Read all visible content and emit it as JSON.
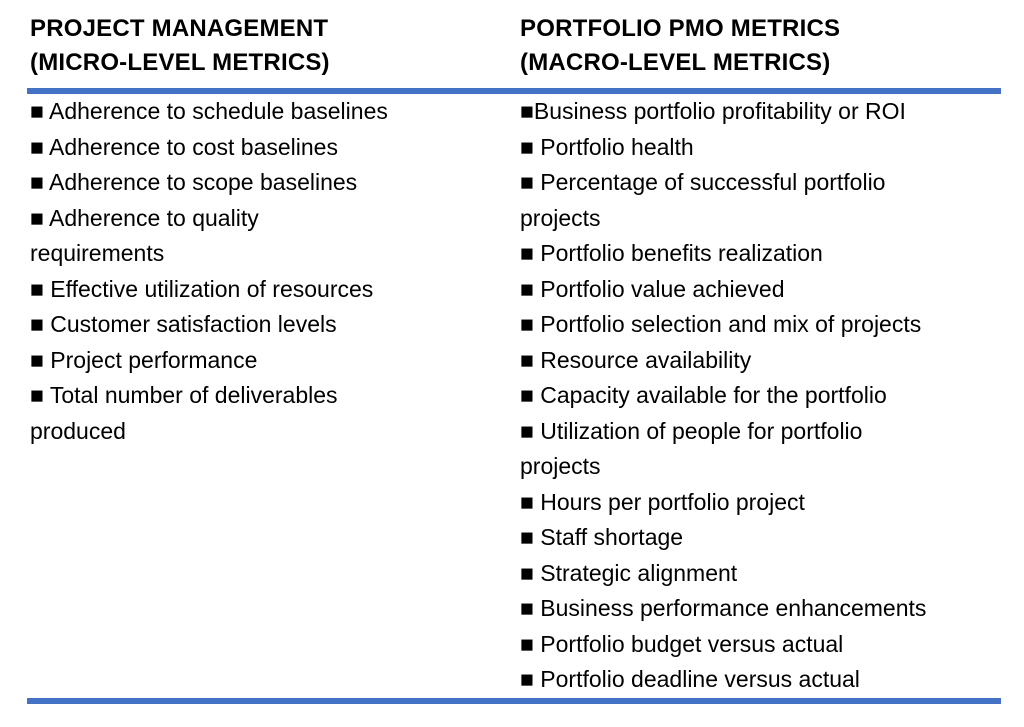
{
  "table": {
    "rule_color": "#4472C4",
    "columns": [
      {
        "header": "PROJECT MANAGEMENT\n(MICRO-LEVEL METRICS)",
        "items": [
          "■ Adherence to schedule baselines",
          "■ Adherence to cost baselines",
          "■ Adherence to scope baselines",
          "■ Adherence to quality\nrequirements",
          "■ Effective utilization of resources",
          "■ Customer satisfaction levels",
          "■ Project performance",
          "■ Total number of deliverables\nproduced"
        ]
      },
      {
        "header": "PORTFOLIO PMO METRICS\n(MACRO-LEVEL METRICS)",
        "items": [
          "■Business portfolio profitability or ROI",
          "■ Portfolio health",
          "■ Percentage of successful portfolio\nprojects",
          "■ Portfolio benefits realization",
          "■ Portfolio value achieved",
          "■ Portfolio selection and mix of projects",
          "■ Resource availability",
          "■ Capacity available for the portfolio",
          "■ Utilization of people for portfolio\nprojects",
          "■ Hours per portfolio project",
          "■ Staff shortage",
          "■ Strategic alignment",
          "■ Business performance enhancements",
          "■ Portfolio budget versus actual",
          "■ Portfolio deadline versus actual"
        ]
      }
    ]
  }
}
